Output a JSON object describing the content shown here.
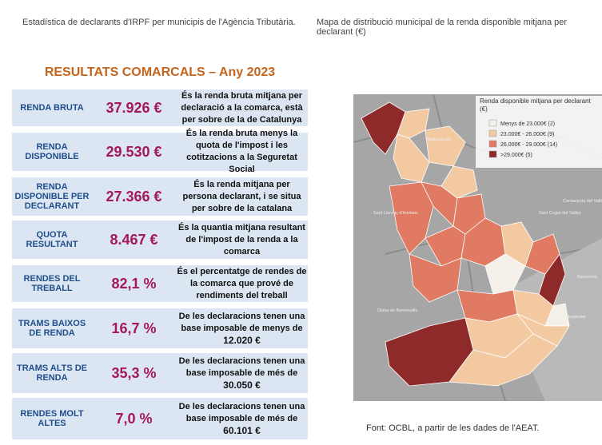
{
  "header": {
    "left": "Estadística de declarants d'IRPF per municipis de l'Agència Tributària.",
    "right": "Mapa de distribució municipal de la renda disponible mitjana per declarant (€)"
  },
  "title": "RESULTATS COMARCALS – Any 2023",
  "rows": [
    {
      "label": "RENDA BRUTA",
      "value": "37.926 €",
      "desc": "És la renda bruta mitjana per declaració a la comarca, està per sobre de la de Catalunya"
    },
    {
      "label": "RENDA DISPONIBLE",
      "value": "29.530 €",
      "desc": "És la renda bruta menys la quota de l'impost i les cotitzacions a la Seguretat Social"
    },
    {
      "label": "RENDA DISPONIBLE PER DECLARANT",
      "value": "27.366 €",
      "desc": "És la renda mitjana per persona declarant, i se situa per sobre de la catalana"
    },
    {
      "label": "QUOTA RESULTANT",
      "value": "8.467 €",
      "desc": "És la quantia mitjana resultant de l'impost de la renda a la comarca"
    },
    {
      "label": "RENDES DEL TREBALL",
      "value": "82,1 %",
      "desc": "És el percentatge de rendes de la comarca que prové de rendiments del treball"
    },
    {
      "label": "TRAMS BAIXOS DE RENDA",
      "value": "16,7 %",
      "desc": "De les declaracions tenen una base imposable de menys de",
      "amount": "12.020 €"
    },
    {
      "label": "TRAMS ALTS DE RENDA",
      "value": "35,3 %",
      "desc": "De les declaracions tenen una base imposable de més de",
      "amount": "30.050 €"
    },
    {
      "label": "RENDES MOLT ALTES",
      "value": "7,0 %",
      "desc": "De les declaracions tenen una base imposable de més de",
      "amount": "60.101 €"
    }
  ],
  "map": {
    "legend_title": "Renda disponible mitjana per declarant (€)",
    "legend": [
      {
        "label": "Menys de 23.000€ (2)",
        "color": "#f4efe9"
      },
      {
        "label": "23.000€ - 26.000€ (9)",
        "color": "#f2c9a1"
      },
      {
        "label": "26.000€ - 29.000€ (14)",
        "color": "#e07a63"
      },
      {
        "label": ">29.000€ (5)",
        "color": "#8f2a2a"
      }
    ],
    "places": [
      "Viladecavalls",
      "Sant Llorenç d'Hortons",
      "Sant Cugat del Vallès",
      "Cerdanyola del Vallès",
      "Olesa de Bonesvalls",
      "Barcelona",
      "L'Hospitalet"
    ]
  },
  "source": "Font: OCBL, a partir de les dades de l'AEAT."
}
